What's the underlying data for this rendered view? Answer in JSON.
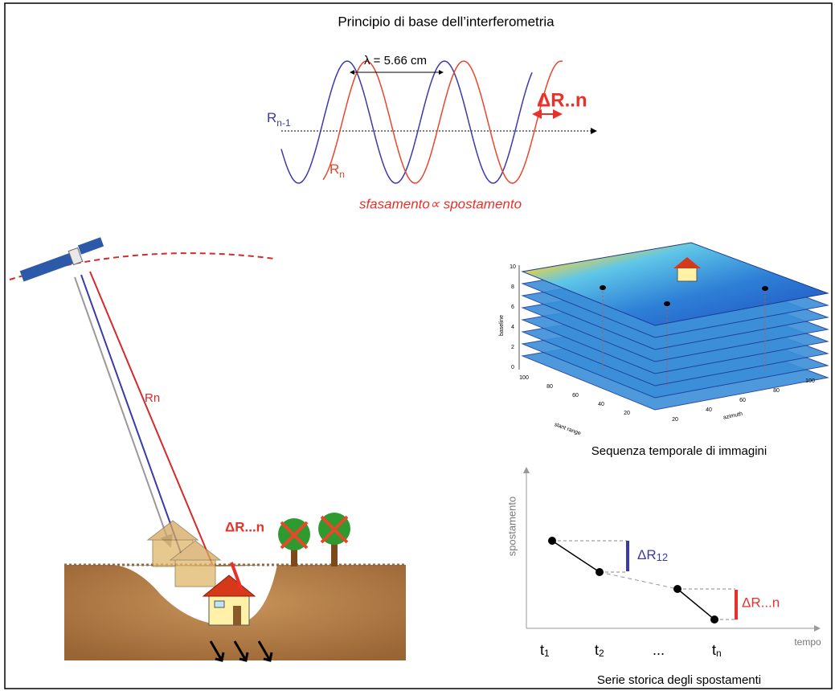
{
  "title": "Principio di base dell’interferometria",
  "wave": {
    "wavelength": "λ = 5.66 cm",
    "label_prev": {
      "base": "R",
      "sub": "n-1"
    },
    "label_curr": {
      "base": "R",
      "sub": "n"
    },
    "delta": "ΔR..n",
    "relation": "sfasamento∝ spostamento"
  },
  "scene": {
    "ray_label": "Rn",
    "delta": "ΔR...n"
  },
  "stack": {
    "caption": "Sequenza temporale di immagini",
    "z_label": "baseline",
    "x_label": "slant range",
    "y_label": "azimuth",
    "z_ticks": [
      "10",
      "8",
      "6",
      "4",
      "2",
      "0"
    ],
    "x_ticks": [
      "100",
      "80",
      "60",
      "40",
      "20"
    ],
    "y_ticks": [
      "20",
      "40",
      "60",
      "80",
      "100"
    ]
  },
  "series": {
    "y_label": "spostamento",
    "x_label": "tempo",
    "delta_first": {
      "base": "ΔR",
      "sub": "12"
    },
    "delta_last": "ΔR...n",
    "time_labels": [
      {
        "base": "t",
        "sub": "1"
      },
      {
        "base": "t",
        "sub": "2"
      },
      {
        "base": "...",
        "sub": ""
      },
      {
        "base": "t",
        "sub": "n"
      }
    ],
    "caption": "Serie storica degli spostamenti"
  }
}
